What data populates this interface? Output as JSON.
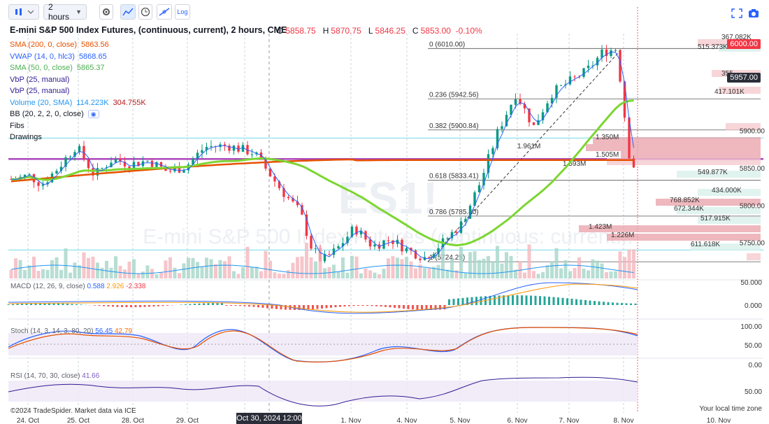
{
  "toolbar": {
    "chart_style_icon": "candles-icon",
    "interval": "2 hours",
    "log_label": "Log"
  },
  "header": {
    "title": "E-mini S&P 500 Index Futures, (continuous, current), 2 hours, CME",
    "ohlc": {
      "o_label": "O",
      "o": "5858.75",
      "h_label": "H",
      "h": "5870.75",
      "l_label": "L",
      "l": "5846.25",
      "c_label": "C",
      "c": "5853.00",
      "change": "-0.10%"
    }
  },
  "indicators": [
    {
      "name": "SMA (200, 0, close)",
      "value": "5863.56",
      "color": "#e65100"
    },
    {
      "name": "VWAP (14, 0, hlc3)",
      "value": "5868.65",
      "color": "#2962ff"
    },
    {
      "name": "SMA (50, 0, close)",
      "value": "5865.37",
      "color": "#4caf50"
    },
    {
      "name": "VbP (25, manual)",
      "value": "",
      "color": "#311b92"
    },
    {
      "name": "VbP (25, manual)",
      "value": "",
      "color": "#311b92"
    },
    {
      "name": "Volume (20, SMA)",
      "value": "114.223K",
      "value2": "304.755K",
      "color": "#2196f3"
    },
    {
      "name": "BB (20, 2, 2, 0, close)",
      "value": "",
      "color": "#131722"
    },
    {
      "name": "Fibs",
      "value": "",
      "color": "#131722"
    },
    {
      "name": "Drawings",
      "value": "",
      "color": "#131722"
    }
  ],
  "watermark": {
    "symbol": "ES1!",
    "desc": "E-mini S&P 500 Index Futures (continuous: current..."
  },
  "chart_data": {
    "type": "candlestick",
    "symbol": "ES1!",
    "interval": "2 hours",
    "x_ticks": [
      "24. Oct",
      "25. Oct",
      "28. Oct",
      "29. Oct",
      "Oct 30, 2024 12:00",
      "1. Nov",
      "4. Nov",
      "5. Nov",
      "6. Nov",
      "7. Nov",
      "8. Nov",
      "10. Nov"
    ],
    "y_ticks": [
      "6000.00",
      "5957.00",
      "5900.00",
      "5850.00",
      "5800.00",
      "5750.00"
    ],
    "ylim": [
      5700,
      6030
    ],
    "close_path": [
      {
        "date": "24. Oct",
        "close": 5835
      },
      {
        "date": "24. Oct",
        "close": 5840
      },
      {
        "date": "24. Oct",
        "close": 5828
      },
      {
        "date": "25. Oct",
        "close": 5850
      },
      {
        "date": "25. Oct",
        "close": 5880
      },
      {
        "date": "25. Oct",
        "close": 5840
      },
      {
        "date": "28. Oct",
        "close": 5862
      },
      {
        "date": "28. Oct",
        "close": 5855
      },
      {
        "date": "28. Oct",
        "close": 5860
      },
      {
        "date": "29. Oct",
        "close": 5845
      },
      {
        "date": "29. Oct",
        "close": 5852
      },
      {
        "date": "29. Oct",
        "close": 5878
      },
      {
        "date": "Oct 30",
        "close": 5880
      },
      {
        "date": "Oct 30",
        "close": 5870
      },
      {
        "date": "Oct 30",
        "close": 5820
      },
      {
        "date": "Oct 31",
        "close": 5790
      },
      {
        "date": "Oct 31",
        "close": 5745
      },
      {
        "date": "Oct 31",
        "close": 5725
      },
      {
        "date": "1. Nov",
        "close": 5740
      },
      {
        "date": "1. Nov",
        "close": 5770
      },
      {
        "date": "1. Nov",
        "close": 5745
      },
      {
        "date": "4. Nov",
        "close": 5755
      },
      {
        "date": "4. Nov",
        "close": 5740
      },
      {
        "date": "4. Nov",
        "close": 5730
      },
      {
        "date": "5. Nov",
        "close": 5750
      },
      {
        "date": "5. Nov",
        "close": 5775
      },
      {
        "date": "5. Nov",
        "close": 5830
      },
      {
        "date": "6. Nov",
        "close": 5900
      },
      {
        "date": "6. Nov",
        "close": 5950
      },
      {
        "date": "6. Nov",
        "close": 5905
      },
      {
        "date": "7. Nov",
        "close": 5950
      },
      {
        "date": "7. Nov",
        "close": 5965
      },
      {
        "date": "7. Nov",
        "close": 5980
      },
      {
        "date": "8. Nov",
        "close": 6005
      },
      {
        "date": "8. Nov",
        "close": 6010
      },
      {
        "date": "8. Nov",
        "close": 5853
      }
    ],
    "fib_levels": [
      {
        "label": "1 (5724.25)",
        "price": 5724.25
      },
      {
        "label": "0.786 (5785.40)",
        "price": 5785.4
      },
      {
        "label": "0.618 (5833.41)",
        "price": 5833.41
      },
      {
        "label": "0.382 (5900.84)",
        "price": 5900.84
      },
      {
        "label": "0.236 (5942.56)",
        "price": 5942.56
      },
      {
        "label": "0 (6010.00)",
        "price": 6010.0
      }
    ],
    "horizontal_lines": [
      {
        "price": 5890,
        "color": "#80deea"
      },
      {
        "price": 5862,
        "color": "#ab47bc"
      },
      {
        "price": 5740,
        "color": "#80deea"
      }
    ],
    "vbp_labels": [
      "367.082K",
      "515.373K",
      "355.",
      "417.101K",
      "1.350M",
      "1.961M",
      "1.505M",
      "1.593M",
      "549.877K",
      "434.000K",
      "768.852K",
      "672.344K",
      "517.915K",
      "1.423M",
      "1.226M",
      "611.618K"
    ],
    "price_tags": [
      {
        "label": "6000.00",
        "color": "#f23645"
      },
      {
        "label": "5957.00",
        "color": "#2a2e39"
      }
    ],
    "panes": [
      {
        "name": "MACD (12, 26, 9, close)",
        "values": [
          "0.588",
          "2.926",
          "-2.338"
        ],
        "colors": [
          "#2962ff",
          "#ff9800",
          "#f23645"
        ],
        "ticks": [
          "50.000",
          "0.000"
        ]
      },
      {
        "name": "Stoch (14, 3, 14, 3, 80, 20)",
        "values": [
          "56.45",
          "42.79"
        ],
        "colors": [
          "#2962ff",
          "#ff6d00"
        ],
        "ticks": [
          "100.00",
          "50.00",
          "0.00"
        ]
      },
      {
        "name": "RSI (14, 70, 30, close)",
        "values": [
          "41.66"
        ],
        "colors": [
          "#7e57c2"
        ],
        "ticks": [
          "50.00"
        ]
      }
    ]
  },
  "footer": {
    "credit": "©2024 TradeSpider. Market data via ICE",
    "timezone": "Your local time zone",
    "crosshair_time": "Oct 30, 2024 12:00"
  }
}
